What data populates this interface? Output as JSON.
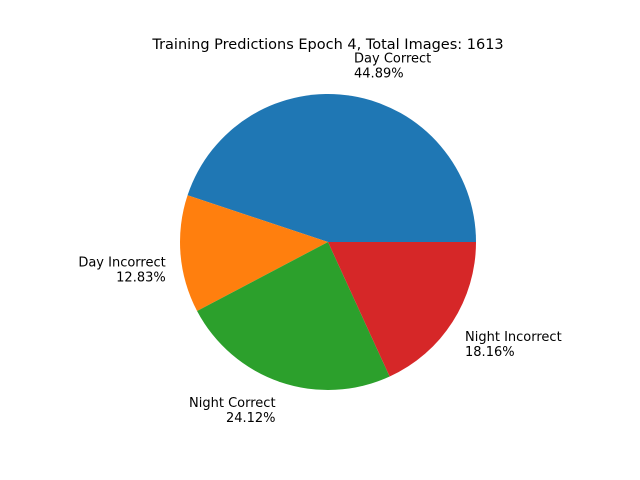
{
  "chart_data": {
    "type": "pie",
    "title": "Training Predictions Epoch 4, Total Images: 1613",
    "start_angle_deg": 0,
    "direction": "counterclockwise",
    "slices": [
      {
        "label": "Day Correct",
        "percent_label": "44.89%",
        "value": 44.89,
        "color": "#1f77b4"
      },
      {
        "label": "Day Incorrect",
        "percent_label": "12.83%",
        "value": 12.83,
        "color": "#ff7f0e"
      },
      {
        "label": "Night Correct",
        "percent_label": "24.12%",
        "value": 24.12,
        "color": "#2ca02c"
      },
      {
        "label": "Night Incorrect",
        "percent_label": "18.16%",
        "value": 18.16,
        "color": "#d62728"
      }
    ]
  }
}
